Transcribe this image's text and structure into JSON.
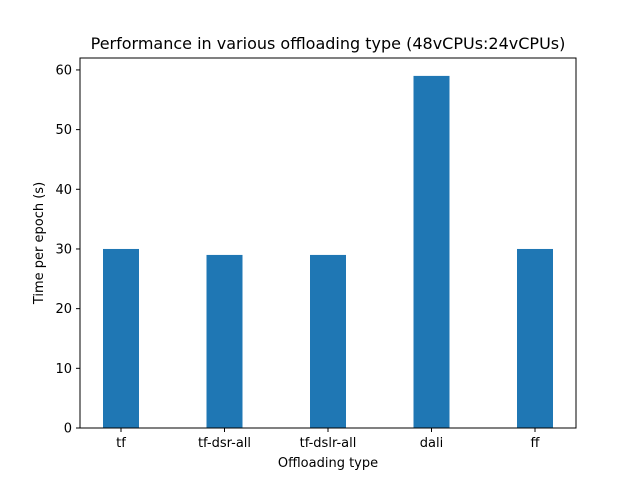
{
  "chart_data": {
    "type": "bar",
    "title": "Performance in various offloading type (48vCPUs:24vCPUs)",
    "xlabel": "Offloading type",
    "ylabel": "Time per epoch (s)",
    "categories": [
      "tf",
      "tf-dsr-all",
      "tf-dslr-all",
      "dali",
      "ff"
    ],
    "values": [
      30,
      29,
      29,
      59,
      30
    ],
    "ylim": [
      0,
      62
    ],
    "yticks": [
      0,
      10,
      20,
      30,
      40,
      50,
      60
    ],
    "bar_color": "#1f77b4",
    "grid": false,
    "legend": false
  }
}
